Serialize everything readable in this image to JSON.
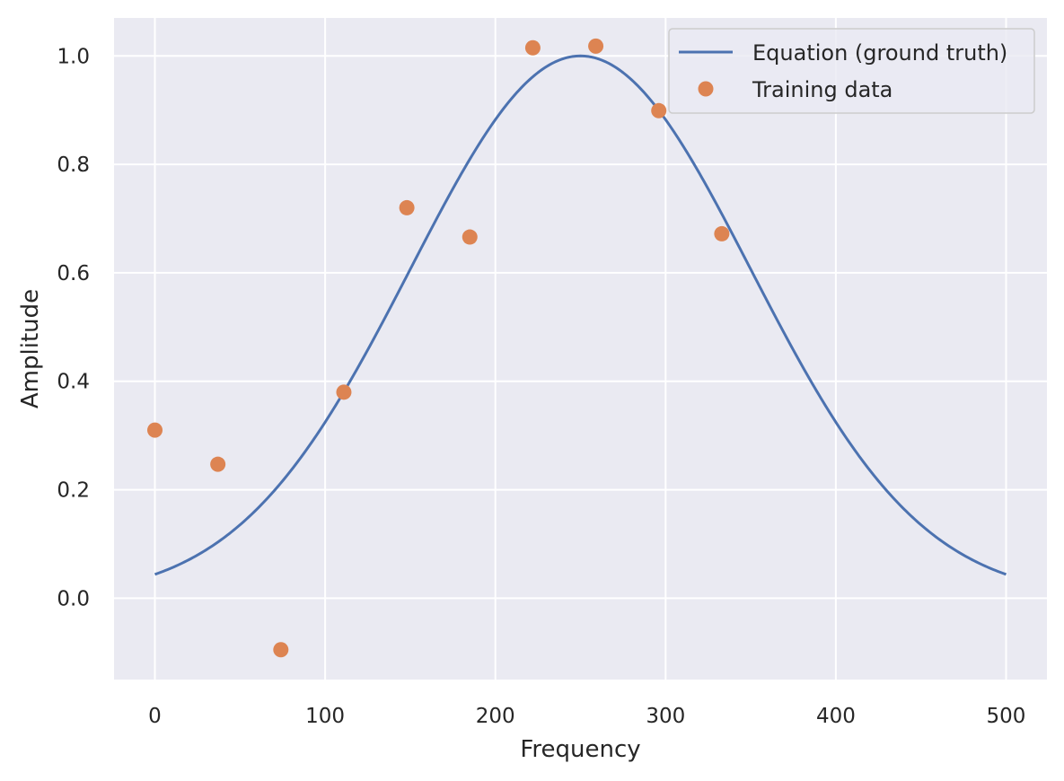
{
  "chart_data": {
    "type": "line",
    "title": "",
    "xlabel": "Frequency",
    "ylabel": "Amplitude",
    "xlim": [
      -24,
      524
    ],
    "ylim": [
      -0.15,
      1.07
    ],
    "xticks": [
      0,
      100,
      200,
      300,
      400,
      500
    ],
    "yticks": [
      0.0,
      0.2,
      0.4,
      0.6,
      0.8,
      1.0
    ],
    "xtick_labels": [
      "0",
      "100",
      "200",
      "300",
      "400",
      "500"
    ],
    "ytick_labels": [
      "0.0",
      "0.2",
      "0.4",
      "0.6",
      "0.8",
      "1.0"
    ],
    "grid": true,
    "legend_position": "top-right",
    "series": [
      {
        "name": "Equation (ground truth)",
        "kind": "line",
        "color": "#4c72b0",
        "x_range": [
          0,
          500
        ],
        "center": 250,
        "sigma": 100,
        "peak": 1.0
      },
      {
        "name": "Training data",
        "kind": "scatter",
        "color": "#dd8452",
        "x": [
          0,
          37,
          74,
          111,
          148,
          185,
          222,
          259,
          296,
          333
        ],
        "y": [
          0.31,
          0.247,
          -0.095,
          0.38,
          0.72,
          0.666,
          1.015,
          1.018,
          0.899,
          0.672
        ]
      }
    ]
  }
}
